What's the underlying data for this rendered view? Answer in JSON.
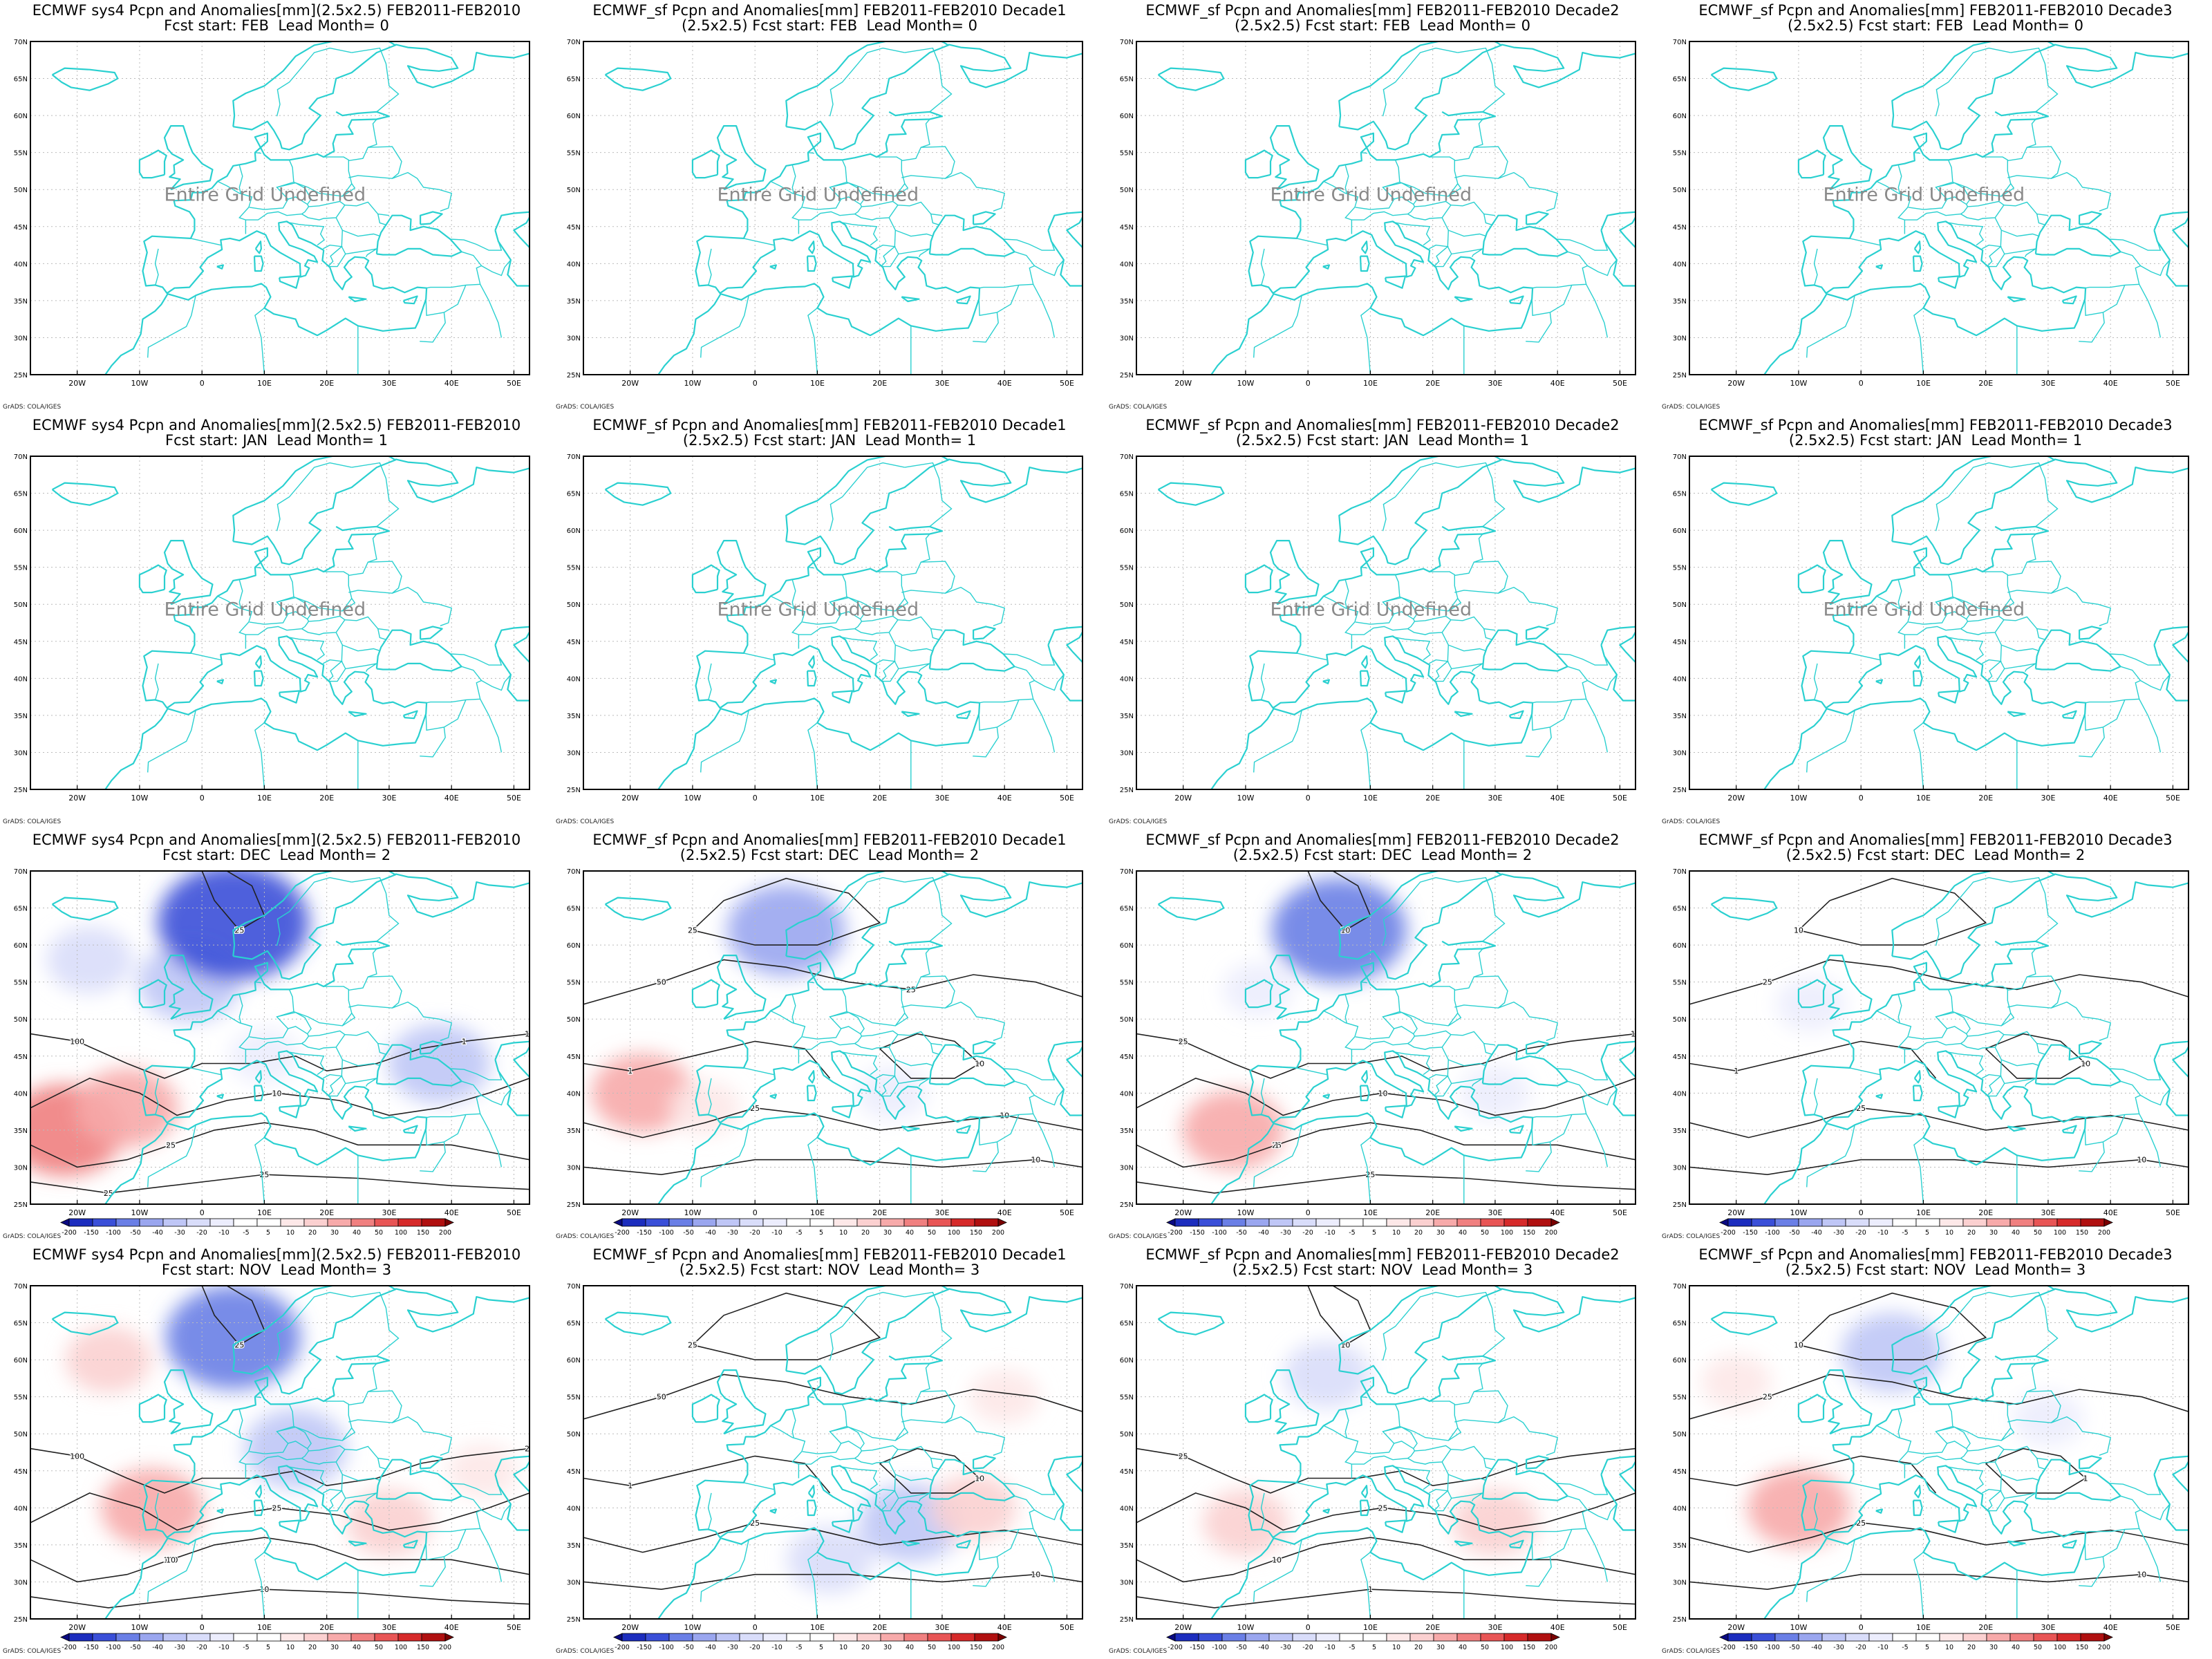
{
  "figure": {
    "credit": "GrADS: COLA/IGES",
    "undefined_text": "Entire Grid Undefined",
    "lat_labels": [
      "25N",
      "30N",
      "35N",
      "40N",
      "45N",
      "50N",
      "55N",
      "60N",
      "65N",
      "70N"
    ],
    "lon_labels": [
      "20W",
      "10W",
      "0",
      "10E",
      "20E",
      "30E",
      "40E",
      "50E"
    ],
    "colorbar_labels": [
      "-200",
      "-150",
      "-100",
      "-50",
      "-40",
      "-30",
      "-20",
      "-10",
      "-5",
      "5",
      "10",
      "20",
      "30",
      "40",
      "50",
      "100",
      "150",
      "200"
    ],
    "colorbar_colors": [
      "#0a0a82",
      "#1c2dbe",
      "#3a4fd8",
      "#6a7fe6",
      "#9aa6ef",
      "#bfc6f6",
      "#d9ddfa",
      "#ecedfd",
      "#ffffff",
      "#ffffff",
      "#fde8e8",
      "#fbd0d0",
      "#f7aaaa",
      "#f08080",
      "#e85555",
      "#d62a2a",
      "#b01010",
      "#7a0000"
    ],
    "coast_color": "#2ad0d0",
    "contour_color": "#222222",
    "positive_color": "#f08080",
    "negative_color": "#7f8ee8"
  },
  "panels": [
    {
      "title1": "ECMWF sys4 Pcpn and Anomalies[mm](2.5x2.5) FEB2011-FEB2010",
      "title2": "Fcst start: FEB  Lead Month= 0",
      "undefined": true
    },
    {
      "title1": "ECMWF_sf Pcpn and Anomalies[mm] FEB2011-FEB2010 Decade1",
      "title2": "(2.5x2.5) Fcst start: FEB  Lead Month= 0",
      "undefined": true
    },
    {
      "title1": "ECMWF_sf Pcpn and Anomalies[mm] FEB2011-FEB2010 Decade2",
      "title2": "(2.5x2.5) Fcst start: FEB  Lead Month= 0",
      "undefined": true
    },
    {
      "title1": "ECMWF_sf Pcpn and Anomalies[mm] FEB2011-FEB2010 Decade3",
      "title2": "(2.5x2.5) Fcst start: FEB  Lead Month= 0",
      "undefined": true
    },
    {
      "title1": "ECMWF sys4 Pcpn and Anomalies[mm](2.5x2.5) FEB2011-FEB2010",
      "title2": "Fcst start: JAN  Lead Month= 1",
      "undefined": true
    },
    {
      "title1": "ECMWF_sf Pcpn and Anomalies[mm] FEB2011-FEB2010 Decade1",
      "title2": "(2.5x2.5) Fcst start: JAN  Lead Month= 1",
      "undefined": true
    },
    {
      "title1": "ECMWF_sf Pcpn and Anomalies[mm] FEB2011-FEB2010 Decade2",
      "title2": "(2.5x2.5) Fcst start: JAN  Lead Month= 1",
      "undefined": true
    },
    {
      "title1": "ECMWF_sf Pcpn and Anomalies[mm] FEB2011-FEB2010 Decade3",
      "title2": "(2.5x2.5) Fcst start: JAN  Lead Month= 1",
      "undefined": true
    },
    {
      "title1": "ECMWF sys4 Pcpn and Anomalies[mm](2.5x2.5) FEB2011-FEB2010",
      "title2": "Fcst start: DEC  Lead Month= 2",
      "undefined": false,
      "anomalies": [
        {
          "lon": -22,
          "lat": 35,
          "value": 40
        },
        {
          "lon": -12,
          "lat": 38,
          "value": 30
        },
        {
          "lon": -18,
          "lat": 58,
          "value": -20
        },
        {
          "lon": -2,
          "lat": 55,
          "value": -30
        },
        {
          "lon": 5,
          "lat": 63,
          "value": -100
        },
        {
          "lon": 38,
          "lat": 44,
          "value": -30
        },
        {
          "lon": 10,
          "lat": 45,
          "value": -10
        }
      ],
      "contour_labels": [
        "100",
        "50",
        "50",
        "10",
        "25",
        "10",
        "25",
        "10",
        "25",
        "25",
        "1"
      ]
    },
    {
      "title1": "ECMWF_sf Pcpn and Anomalies[mm] FEB2011-FEB2010 Decade1",
      "title2": "(2.5x2.5) Fcst start: DEC  Lead Month= 2",
      "undefined": false,
      "anomalies": [
        {
          "lon": -18,
          "lat": 40,
          "value": 30
        },
        {
          "lon": 5,
          "lat": 62,
          "value": -40
        },
        {
          "lon": 22,
          "lat": 40,
          "value": -10
        },
        {
          "lon": -8,
          "lat": 38,
          "value": 10
        }
      ],
      "contour_labels": [
        "50",
        "25",
        "10",
        "25",
        "10",
        "1",
        "25",
        "10"
      ]
    },
    {
      "title1": "ECMWF_sf Pcpn and Anomalies[mm] FEB2011-FEB2010 Decade2",
      "title2": "(2.5x2.5) Fcst start: DEC  Lead Month= 2",
      "undefined": false,
      "anomalies": [
        {
          "lon": -12,
          "lat": 35,
          "value": 30
        },
        {
          "lon": 5,
          "lat": 62,
          "value": -50
        },
        {
          "lon": -8,
          "lat": 54,
          "value": -10
        },
        {
          "lon": 30,
          "lat": 40,
          "value": -10
        }
      ],
      "contour_labels": [
        "25",
        "25",
        "10",
        "10",
        "25",
        "10",
        "1"
      ]
    },
    {
      "title1": "ECMWF_sf Pcpn and Anomalies[mm] FEB2011-FEB2010 Decade3",
      "title2": "(2.5x2.5) Fcst start: DEC  Lead Month= 2",
      "undefined": false,
      "anomalies": [
        {
          "lon": -8,
          "lat": 52,
          "value": -10
        },
        {
          "lon": 30,
          "lat": 55,
          "value": -5
        },
        {
          "lon": 0,
          "lat": 38,
          "value": 5
        }
      ],
      "contour_labels": [
        "25",
        "25",
        "10",
        "10",
        "10",
        "1"
      ]
    },
    {
      "title1": "ECMWF sys4 Pcpn and Anomalies[mm](2.5x2.5) FEB2011-FEB2010",
      "title2": "Fcst start: NOV  Lead Month= 3",
      "undefined": false,
      "anomalies": [
        {
          "lon": -15,
          "lat": 60,
          "value": 20
        },
        {
          "lon": 5,
          "lat": 63,
          "value": -50
        },
        {
          "lon": 15,
          "lat": 48,
          "value": -30
        },
        {
          "lon": -8,
          "lat": 40,
          "value": 30
        },
        {
          "lon": 30,
          "lat": 38,
          "value": 20
        },
        {
          "lon": 45,
          "lat": 45,
          "value": 10
        }
      ],
      "contour_labels": [
        "100",
        "100",
        "50",
        "25",
        "10",
        "25",
        "10",
        "25"
      ]
    },
    {
      "title1": "ECMWF_sf Pcpn and Anomalies[mm] FEB2011-FEB2010 Decade1",
      "title2": "(2.5x2.5) Fcst start: NOV  Lead Month= 3",
      "undefined": false,
      "anomalies": [
        {
          "lon": 25,
          "lat": 38,
          "value": -30
        },
        {
          "lon": 12,
          "lat": 33,
          "value": -20
        },
        {
          "lon": 35,
          "lat": 40,
          "value": 20
        },
        {
          "lon": 40,
          "lat": 55,
          "value": 10
        }
      ],
      "contour_labels": [
        "50",
        "25",
        "10",
        "25",
        "10",
        "1"
      ]
    },
    {
      "title1": "ECMWF_sf Pcpn and Anomalies[mm] FEB2011-FEB2010 Decade2",
      "title2": "(2.5x2.5) Fcst start: NOV  Lead Month= 3",
      "undefined": false,
      "anomalies": [
        {
          "lon": -10,
          "lat": 38,
          "value": 20
        },
        {
          "lon": 3,
          "lat": 58,
          "value": -20
        },
        {
          "lon": 30,
          "lat": 38,
          "value": 20
        },
        {
          "lon": 40,
          "lat": 52,
          "value": -5
        }
      ],
      "contour_labels": [
        "25",
        "10",
        "25",
        "10",
        "1"
      ]
    },
    {
      "title1": "ECMWF_sf Pcpn and Anomalies[mm] FEB2011-FEB2010 Decade3",
      "title2": "(2.5x2.5) Fcst start: NOV  Lead Month= 3",
      "undefined": false,
      "anomalies": [
        {
          "lon": -10,
          "lat": 40,
          "value": 30
        },
        {
          "lon": 5,
          "lat": 61,
          "value": -30
        },
        {
          "lon": 30,
          "lat": 52,
          "value": -10
        },
        {
          "lon": -20,
          "lat": 57,
          "value": 10
        }
      ],
      "contour_labels": [
        "25",
        "25",
        "10",
        "10",
        "1"
      ]
    }
  ]
}
